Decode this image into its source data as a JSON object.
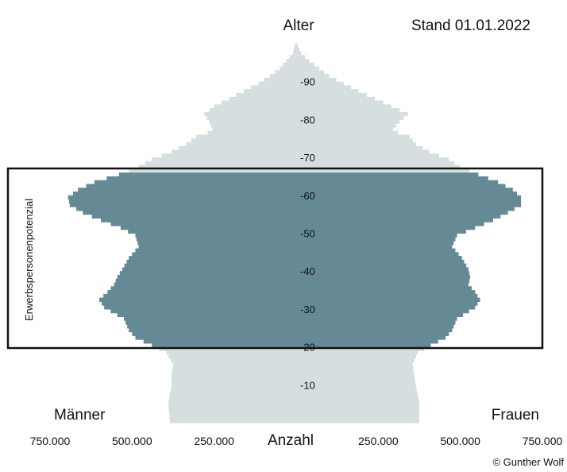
{
  "chart_data": {
    "type": "population-pyramid",
    "title": "Alter",
    "date_label": "Stand 01.01.2022",
    "xlabel": "Anzahl",
    "left_label": "Männer",
    "right_label": "Frauen",
    "credit": "© Gunther Wolf",
    "age_ticks": [
      "-10",
      "-20",
      "-30",
      "-40",
      "-50",
      "-60",
      "-70",
      "-80",
      "-90"
    ],
    "age_tick_values": [
      10,
      20,
      30,
      40,
      50,
      60,
      70,
      80,
      90
    ],
    "x_ticks_left": [
      "750.000",
      "500.000",
      "250.000"
    ],
    "x_ticks_right": [
      "250.000",
      "500.000",
      "750.000"
    ],
    "x_tick_values": [
      750000,
      500000,
      250000,
      250000,
      500000,
      750000
    ],
    "xlim": [
      -750000,
      750000
    ],
    "ylim": [
      0,
      99
    ],
    "highlight": {
      "label": "Erwerbspersonenpotenzial",
      "age_range": [
        20,
        66
      ]
    },
    "colors": {
      "base": "#d6dfe0",
      "highlight": "#658a96",
      "box": "#111111"
    },
    "men": [
      [
        0,
        385000
      ],
      [
        5,
        390000
      ],
      [
        9,
        380000
      ],
      [
        12,
        380000
      ],
      [
        15,
        375000
      ],
      [
        18,
        395000
      ],
      [
        20,
        440000
      ],
      [
        22,
        490000
      ],
      [
        24,
        510000
      ],
      [
        27,
        525000
      ],
      [
        30,
        585000
      ],
      [
        32,
        600000
      ],
      [
        34,
        575000
      ],
      [
        36,
        555000
      ],
      [
        38,
        545000
      ],
      [
        40,
        530000
      ],
      [
        43,
        510000
      ],
      [
        46,
        480000
      ],
      [
        49,
        490000
      ],
      [
        51,
        535000
      ],
      [
        53,
        595000
      ],
      [
        55,
        650000
      ],
      [
        57,
        690000
      ],
      [
        59,
        695000
      ],
      [
        61,
        665000
      ],
      [
        63,
        615000
      ],
      [
        65,
        540000
      ],
      [
        67,
        480000
      ],
      [
        69,
        440000
      ],
      [
        71,
        380000
      ],
      [
        73,
        335000
      ],
      [
        75,
        305000
      ],
      [
        76,
        270000
      ],
      [
        77,
        255000
      ],
      [
        79,
        265000
      ],
      [
        81,
        280000
      ],
      [
        83,
        250000
      ],
      [
        85,
        205000
      ],
      [
        87,
        160000
      ],
      [
        89,
        115000
      ],
      [
        91,
        80000
      ],
      [
        93,
        50000
      ],
      [
        95,
        30000
      ],
      [
        97,
        10000
      ],
      [
        99,
        5000
      ]
    ],
    "women": [
      [
        0,
        375000
      ],
      [
        5,
        375000
      ],
      [
        9,
        365000
      ],
      [
        12,
        360000
      ],
      [
        15,
        355000
      ],
      [
        18,
        370000
      ],
      [
        20,
        410000
      ],
      [
        22,
        455000
      ],
      [
        24,
        475000
      ],
      [
        27,
        490000
      ],
      [
        30,
        545000
      ],
      [
        32,
        560000
      ],
      [
        34,
        545000
      ],
      [
        36,
        525000
      ],
      [
        38,
        530000
      ],
      [
        40,
        525000
      ],
      [
        43,
        505000
      ],
      [
        46,
        475000
      ],
      [
        49,
        490000
      ],
      [
        51,
        545000
      ],
      [
        53,
        600000
      ],
      [
        55,
        645000
      ],
      [
        57,
        685000
      ],
      [
        59,
        685000
      ],
      [
        61,
        660000
      ],
      [
        63,
        615000
      ],
      [
        65,
        555000
      ],
      [
        67,
        500000
      ],
      [
        69,
        465000
      ],
      [
        71,
        405000
      ],
      [
        73,
        365000
      ],
      [
        75,
        345000
      ],
      [
        76,
        310000
      ],
      [
        77,
        295000
      ],
      [
        79,
        315000
      ],
      [
        81,
        340000
      ],
      [
        83,
        290000
      ],
      [
        85,
        240000
      ],
      [
        87,
        190000
      ],
      [
        89,
        145000
      ],
      [
        91,
        100000
      ],
      [
        93,
        70000
      ],
      [
        95,
        40000
      ],
      [
        97,
        15000
      ],
      [
        99,
        5000
      ]
    ]
  }
}
